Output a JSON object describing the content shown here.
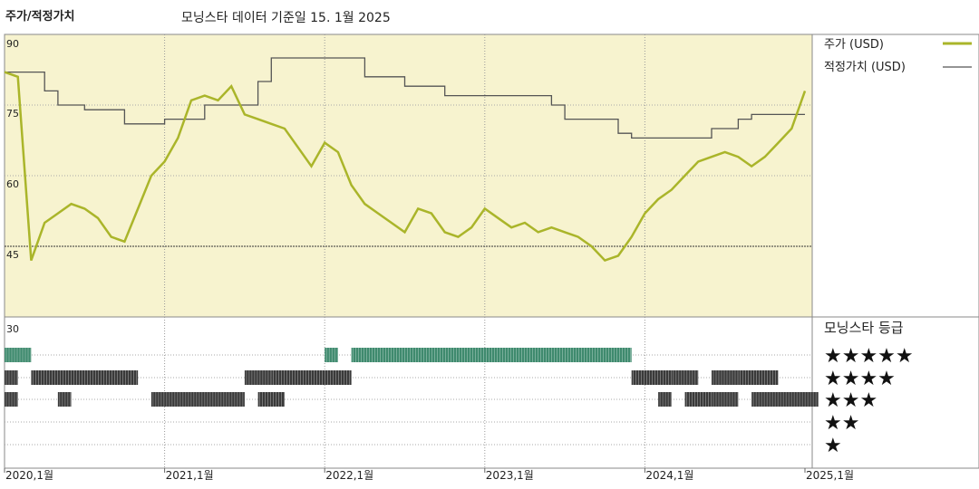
{
  "header": {
    "label": "주가/적정가치",
    "subtitle": "모닝스타 데이터 기준일 15. 1월 2025"
  },
  "legend": {
    "price": "주가 (USD)",
    "fair": "적정가치 (USD)",
    "rating_title": "모닝스타 등급",
    "stars": [
      "★★★★★",
      "★★★★",
      "★★★",
      "★★",
      "★"
    ]
  },
  "colors": {
    "panel_bg": "#f7f3cf",
    "price_line": "#aab52a",
    "fair_line": "#555555",
    "five_star": "#3f8a6e",
    "bar_dark": "#3a3a3a"
  },
  "chart_data": {
    "type": "line",
    "x_tick_labels": [
      "2020,1월",
      "2021,1월",
      "2022,1월",
      "2023,1월",
      "2024,1월",
      "2025,1월"
    ],
    "y_tick_labels": [
      "90",
      "75",
      "60",
      "45"
    ],
    "rating_y_label": "30",
    "ylim": [
      30,
      90
    ],
    "xlim": [
      "2020-01",
      "2025-01"
    ],
    "series": [
      {
        "name": "주가 (USD)",
        "x": [
          "2020-01",
          "2020-02",
          "2020-03",
          "2020-04",
          "2020-05",
          "2020-06",
          "2020-07",
          "2020-08",
          "2020-09",
          "2020-10",
          "2020-11",
          "2020-12",
          "2021-01",
          "2021-02",
          "2021-03",
          "2021-04",
          "2021-05",
          "2021-06",
          "2021-07",
          "2021-08",
          "2021-09",
          "2021-10",
          "2021-11",
          "2021-12",
          "2022-01",
          "2022-02",
          "2022-03",
          "2022-04",
          "2022-05",
          "2022-06",
          "2022-07",
          "2022-08",
          "2022-09",
          "2022-10",
          "2022-11",
          "2022-12",
          "2023-01",
          "2023-02",
          "2023-03",
          "2023-04",
          "2023-05",
          "2023-06",
          "2023-07",
          "2023-08",
          "2023-09",
          "2023-10",
          "2023-11",
          "2023-12",
          "2024-01",
          "2024-02",
          "2024-03",
          "2024-04",
          "2024-05",
          "2024-06",
          "2024-07",
          "2024-08",
          "2024-09",
          "2024-10",
          "2024-11",
          "2024-12",
          "2025-01"
        ],
        "values": [
          82,
          81,
          42,
          50,
          52,
          54,
          53,
          51,
          47,
          46,
          53,
          60,
          63,
          68,
          76,
          77,
          76,
          79,
          73,
          72,
          71,
          70,
          66,
          62,
          67,
          65,
          58,
          54,
          52,
          50,
          48,
          53,
          52,
          48,
          47,
          49,
          53,
          51,
          49,
          50,
          48,
          49,
          48,
          47,
          45,
          42,
          43,
          47,
          52,
          55,
          57,
          60,
          63,
          64,
          65,
          64,
          62,
          64,
          67,
          70,
          78
        ]
      },
      {
        "name": "적정가치 (USD)",
        "x": [
          "2020-01",
          "2020-03",
          "2020-04",
          "2020-05",
          "2020-07",
          "2020-10",
          "2021-01",
          "2021-04",
          "2021-08",
          "2021-09",
          "2022-01",
          "2022-04",
          "2022-07",
          "2022-10",
          "2023-01",
          "2023-04",
          "2023-06",
          "2023-07",
          "2023-11",
          "2023-12",
          "2024-01",
          "2024-03",
          "2024-06",
          "2024-08",
          "2024-09",
          "2025-01"
        ],
        "values": [
          82,
          82,
          78,
          75,
          74,
          71,
          72,
          75,
          80,
          85,
          85,
          81,
          79,
          77,
          77,
          77,
          75,
          72,
          69,
          68,
          68,
          68,
          70,
          72,
          73,
          73
        ]
      }
    ],
    "star_rating_rows": [
      5,
      4,
      3,
      2,
      1
    ],
    "star_rating_periods": [
      {
        "stars": 5,
        "from": "2020-01",
        "to": "2020-02"
      },
      {
        "stars": 4,
        "from": "2020-01",
        "to": "2020-01"
      },
      {
        "stars": 4,
        "from": "2020-03",
        "to": "2020-10"
      },
      {
        "stars": 3,
        "from": "2020-01",
        "to": "2020-01"
      },
      {
        "stars": 3,
        "from": "2020-05",
        "to": "2020-05"
      },
      {
        "stars": 3,
        "from": "2020-12",
        "to": "2021-06"
      },
      {
        "stars": 3,
        "from": "2021-08",
        "to": "2021-09"
      },
      {
        "stars": 4,
        "from": "2021-07",
        "to": "2021-08"
      },
      {
        "stars": 4,
        "from": "2021-09",
        "to": "2022-02"
      },
      {
        "stars": 5,
        "from": "2022-01",
        "to": "2022-01"
      },
      {
        "stars": 5,
        "from": "2022-03",
        "to": "2023-11"
      },
      {
        "stars": 4,
        "from": "2023-12",
        "to": "2024-02"
      },
      {
        "stars": 4,
        "from": "2024-03",
        "to": "2024-04"
      },
      {
        "stars": 4,
        "from": "2024-06",
        "to": "2024-07"
      },
      {
        "stars": 4,
        "from": "2024-08",
        "to": "2024-10"
      },
      {
        "stars": 3,
        "from": "2024-02",
        "to": "2024-02"
      },
      {
        "stars": 3,
        "from": "2024-04",
        "to": "2024-05"
      },
      {
        "stars": 3,
        "from": "2024-06",
        "to": "2024-07"
      },
      {
        "stars": 3,
        "from": "2024-09",
        "to": "2025-01"
      }
    ]
  }
}
